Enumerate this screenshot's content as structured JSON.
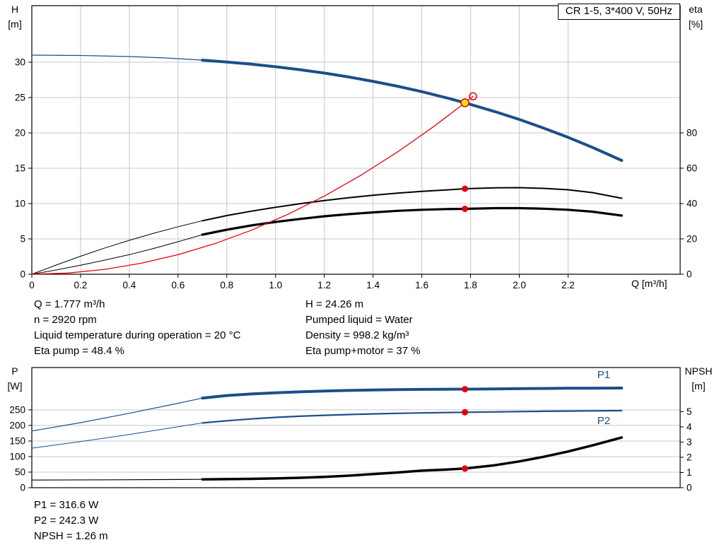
{
  "info_text": {
    "col1": [
      "Q = 1.777 m³/h",
      "n = 2920 rpm",
      "Liquid temperature during operation = 20 °C",
      "Eta pump = 48.4 %"
    ],
    "col2": [
      "H = 24.26 m",
      "Pumped liquid = Water",
      "Density = 998.2 kg/m³",
      "Eta pump+motor = 37 %"
    ]
  },
  "result_text": {
    "lines": [
      "P1 = 316.6 W",
      "P2 = 242.3 W",
      "NPSH = 1.26 m"
    ]
  },
  "colors": {
    "curve_blue": "#1b4f87",
    "curve_red": "#e3000f",
    "curve_black": "#000000",
    "duty_yellow": "#ffe000",
    "grid": "#c8c8c8"
  },
  "chart_data": [
    {
      "name": "qh-eta-chart",
      "type": "line",
      "title": "CR 1-5, 3*400 V, 50Hz",
      "x_axis": {
        "label": "Q [m³/h]",
        "min": 0,
        "max": 2.66,
        "ticks": [
          0,
          0.2,
          0.4,
          0.6,
          0.8,
          1,
          1.2,
          1.4,
          1.6,
          1.8,
          2,
          2.2
        ],
        "tick_labels": [
          "0",
          "0.2",
          "0.4",
          "0.6",
          "0.8",
          "1.0",
          "1.2",
          "1.4",
          "1.6",
          "1.8",
          "2.0",
          "2.2"
        ]
      },
      "y_left": {
        "label_lines": [
          "H",
          "[m]"
        ],
        "min": 0,
        "max": 38,
        "ticks": [
          0,
          5,
          10,
          15,
          20,
          25,
          30
        ]
      },
      "y_right": {
        "label_lines": [
          "eta",
          "[%]"
        ],
        "min": 0,
        "max": 152,
        "ticks": [
          0,
          20,
          40,
          60,
          80
        ]
      },
      "grid": {
        "vertical": true,
        "horizontal": true
      },
      "series": [
        {
          "name": "eta-pump-curve-lowflow",
          "axis": "right",
          "color": "#000000",
          "width": 1,
          "points": [
            [
              0,
              0
            ],
            [
              0.1,
              5.2
            ],
            [
              0.2,
              10.2
            ],
            [
              0.3,
              14.9
            ],
            [
              0.4,
              19.2
            ],
            [
              0.5,
              23.2
            ],
            [
              0.6,
              26.9
            ],
            [
              0.7,
              30.3
            ]
          ]
        },
        {
          "name": "eta-pump-curve",
          "axis": "right",
          "color": "#000000",
          "width": 2,
          "points": [
            [
              0.7,
              30.3
            ],
            [
              0.8,
              33.2
            ],
            [
              0.9,
              35.7
            ],
            [
              1.0,
              37.9
            ],
            [
              1.1,
              39.9
            ],
            [
              1.2,
              41.7
            ],
            [
              1.3,
              43.3
            ],
            [
              1.4,
              44.7
            ],
            [
              1.5,
              45.9
            ],
            [
              1.6,
              46.9
            ],
            [
              1.7,
              47.7
            ],
            [
              1.777,
              48.4
            ],
            [
              1.9,
              48.9
            ],
            [
              2.0,
              49.0
            ],
            [
              2.1,
              48.6
            ],
            [
              2.2,
              47.8
            ],
            [
              2.3,
              46.2
            ],
            [
              2.42,
              43.0
            ]
          ]
        },
        {
          "name": "eta-pump-motor-curve-lowflow",
          "axis": "right",
          "color": "#000000",
          "width": 1,
          "points": [
            [
              0,
              0
            ],
            [
              0.1,
              2.4
            ],
            [
              0.2,
              5.1
            ],
            [
              0.3,
              8.0
            ],
            [
              0.4,
              11.1
            ],
            [
              0.5,
              14.6
            ],
            [
              0.6,
              18.4
            ],
            [
              0.7,
              22.4
            ]
          ]
        },
        {
          "name": "eta-pump-motor-curve",
          "axis": "right",
          "color": "#000000",
          "width": 3.2,
          "points": [
            [
              0.7,
              22.4
            ],
            [
              0.8,
              25.2
            ],
            [
              0.9,
              27.6
            ],
            [
              1.0,
              29.6
            ],
            [
              1.1,
              31.3
            ],
            [
              1.2,
              32.8
            ],
            [
              1.3,
              34.0
            ],
            [
              1.4,
              35.0
            ],
            [
              1.5,
              35.9
            ],
            [
              1.6,
              36.5
            ],
            [
              1.7,
              36.9
            ],
            [
              1.777,
              37.0
            ],
            [
              1.9,
              37.4
            ],
            [
              2.0,
              37.4
            ],
            [
              2.1,
              37.1
            ],
            [
              2.2,
              36.5
            ],
            [
              2.3,
              35.4
            ],
            [
              2.42,
              33.2
            ]
          ]
        },
        {
          "name": "qh-curve-lowflow",
          "axis": "left",
          "color": "#1b4f87",
          "width": 1.2,
          "points": [
            [
              0,
              31
            ],
            [
              0.2,
              30.95
            ],
            [
              0.4,
              30.8
            ],
            [
              0.55,
              30.6
            ],
            [
              0.7,
              30.29
            ]
          ]
        },
        {
          "name": "qh-curve",
          "axis": "left",
          "color": "#1b4f87",
          "width": 4,
          "points": [
            [
              0.7,
              30.29
            ],
            [
              0.8,
              30.03
            ],
            [
              0.9,
              29.72
            ],
            [
              1.0,
              29.36
            ],
            [
              1.1,
              28.94
            ],
            [
              1.2,
              28.46
            ],
            [
              1.3,
              27.91
            ],
            [
              1.4,
              27.29
            ],
            [
              1.5,
              26.6
            ],
            [
              1.6,
              25.83
            ],
            [
              1.7,
              24.97
            ],
            [
              1.777,
              24.26
            ],
            [
              1.9,
              23.01
            ],
            [
              2.0,
              21.9
            ],
            [
              2.1,
              20.68
            ],
            [
              2.2,
              19.37
            ],
            [
              2.3,
              17.95
            ],
            [
              2.42,
              16.1
            ]
          ]
        },
        {
          "name": "system-curve",
          "axis": "left",
          "color": "#e3000f",
          "width": 1.3,
          "points": [
            [
              0,
              0
            ],
            [
              0.15,
              0.17
            ],
            [
              0.3,
              0.69
            ],
            [
              0.45,
              1.56
            ],
            [
              0.6,
              2.77
            ],
            [
              0.75,
              4.32
            ],
            [
              0.9,
              6.22
            ],
            [
              1.05,
              8.47
            ],
            [
              1.2,
              11.06
            ],
            [
              1.35,
              14.0
            ],
            [
              1.5,
              17.29
            ],
            [
              1.65,
              20.92
            ],
            [
              1.777,
              24.26
            ],
            [
              1.81,
              25.17
            ]
          ]
        }
      ],
      "markers": [
        {
          "name": "system-curve-end-point",
          "x": 1.81,
          "y": 25.17,
          "axis": "left",
          "r": 5,
          "fill": "none",
          "stroke": "#e3000f"
        },
        {
          "name": "duty-point",
          "x": 1.777,
          "y": 24.26,
          "axis": "left",
          "r": 5.5,
          "fill": "#ffe000",
          "stroke": "#e3000f"
        },
        {
          "name": "eta-pump-duty-point",
          "x": 1.777,
          "y": 48.4,
          "axis": "right",
          "r": 4.5,
          "fill": "#e3000f"
        },
        {
          "name": "eta-pump-motor-duty-point",
          "x": 1.777,
          "y": 37.0,
          "axis": "right",
          "r": 4.5,
          "fill": "#e3000f"
        }
      ],
      "annotations": []
    },
    {
      "name": "power-npsh-chart",
      "type": "line",
      "x_axis": {
        "min": 0,
        "max": 2.66,
        "ticks": []
      },
      "y_left": {
        "label_lines": [
          "P",
          "[W]"
        ],
        "min": 0,
        "max": 386,
        "ticks": [
          0,
          50,
          100,
          150,
          200,
          250
        ]
      },
      "y_right": {
        "label_lines": [
          "NPSH",
          "[m]"
        ],
        "min": 0,
        "max": 7.9,
        "ticks": [
          0,
          1,
          2,
          3,
          4,
          5
        ]
      },
      "grid": {
        "vertical": false,
        "horizontal": true
      },
      "series": [
        {
          "name": "p1-curve-lowflow",
          "axis": "left",
          "color": "#1b4f87",
          "width": 1.2,
          "points": [
            [
              0,
              182
            ],
            [
              0.2,
              209
            ],
            [
              0.4,
              239
            ],
            [
              0.6,
              271
            ],
            [
              0.7,
              288
            ]
          ]
        },
        {
          "name": "p1-curve",
          "axis": "left",
          "color": "#1b4f87",
          "width": 4,
          "points": [
            [
              0.7,
              288
            ],
            [
              0.8,
              296
            ],
            [
              0.9,
              301
            ],
            [
              1.0,
              305
            ],
            [
              1.1,
              308
            ],
            [
              1.2,
              310.5
            ],
            [
              1.3,
              312.5
            ],
            [
              1.4,
              314
            ],
            [
              1.5,
              315
            ],
            [
              1.6,
              315.8
            ],
            [
              1.7,
              316.3
            ],
            [
              1.777,
              316.6
            ],
            [
              1.9,
              317.4
            ],
            [
              2.0,
              318.1
            ],
            [
              2.1,
              318.8
            ],
            [
              2.2,
              319.4
            ],
            [
              2.3,
              319.8
            ],
            [
              2.42,
              320.2
            ]
          ]
        },
        {
          "name": "p2-curve-lowflow",
          "axis": "left",
          "color": "#1b4f87",
          "width": 1,
          "points": [
            [
              0,
              127
            ],
            [
              0.2,
              148
            ],
            [
              0.4,
              171
            ],
            [
              0.6,
              196
            ],
            [
              0.7,
              208
            ]
          ]
        },
        {
          "name": "p2-curve",
          "axis": "left",
          "color": "#1b4f87",
          "width": 2.2,
          "points": [
            [
              0.7,
              208
            ],
            [
              0.8,
              215
            ],
            [
              0.9,
              221
            ],
            [
              1.0,
              226
            ],
            [
              1.1,
              229.5
            ],
            [
              1.2,
              232.5
            ],
            [
              1.3,
              235
            ],
            [
              1.4,
              237
            ],
            [
              1.5,
              238.8
            ],
            [
              1.6,
              240.2
            ],
            [
              1.7,
              241.4
            ],
            [
              1.777,
              242.3
            ],
            [
              1.9,
              243.5
            ],
            [
              2.0,
              244.5
            ],
            [
              2.1,
              245.4
            ],
            [
              2.2,
              246.2
            ],
            [
              2.3,
              246.9
            ],
            [
              2.42,
              247.5
            ]
          ]
        },
        {
          "name": "npsh-curve-lowflow",
          "axis": "right",
          "color": "#000000",
          "width": 1.2,
          "points": [
            [
              0,
              0.5
            ],
            [
              0.35,
              0.52
            ],
            [
              0.7,
              0.55
            ]
          ]
        },
        {
          "name": "npsh-curve",
          "axis": "right",
          "color": "#000000",
          "width": 3.5,
          "points": [
            [
              0.7,
              0.55
            ],
            [
              0.9,
              0.58
            ],
            [
              1.0,
              0.61
            ],
            [
              1.1,
              0.65
            ],
            [
              1.2,
              0.71
            ],
            [
              1.3,
              0.79
            ],
            [
              1.4,
              0.89
            ],
            [
              1.5,
              1.0
            ],
            [
              1.6,
              1.12
            ],
            [
              1.7,
              1.19
            ],
            [
              1.777,
              1.26
            ],
            [
              1.9,
              1.48
            ],
            [
              2.0,
              1.73
            ],
            [
              2.1,
              2.03
            ],
            [
              2.2,
              2.38
            ],
            [
              2.3,
              2.78
            ],
            [
              2.42,
              3.3
            ]
          ]
        }
      ],
      "markers": [
        {
          "name": "p1-duty-point",
          "x": 1.777,
          "y": 316.6,
          "axis": "left",
          "r": 4.5,
          "fill": "#e3000f"
        },
        {
          "name": "p2-duty-point",
          "x": 1.777,
          "y": 242.3,
          "axis": "left",
          "r": 4.5,
          "fill": "#e3000f"
        },
        {
          "name": "npsh-duty-point",
          "x": 1.777,
          "y": 1.26,
          "axis": "right",
          "r": 4.5,
          "fill": "#e3000f"
        }
      ],
      "annotations": [
        {
          "name": "p1-curve-label",
          "text": "P1",
          "x": 2.32,
          "y": 352,
          "axis": "left",
          "color": "#1b4f87"
        },
        {
          "name": "p2-curve-label",
          "text": "P2",
          "x": 2.32,
          "y": 204,
          "axis": "left",
          "color": "#1b4f87"
        }
      ]
    }
  ]
}
